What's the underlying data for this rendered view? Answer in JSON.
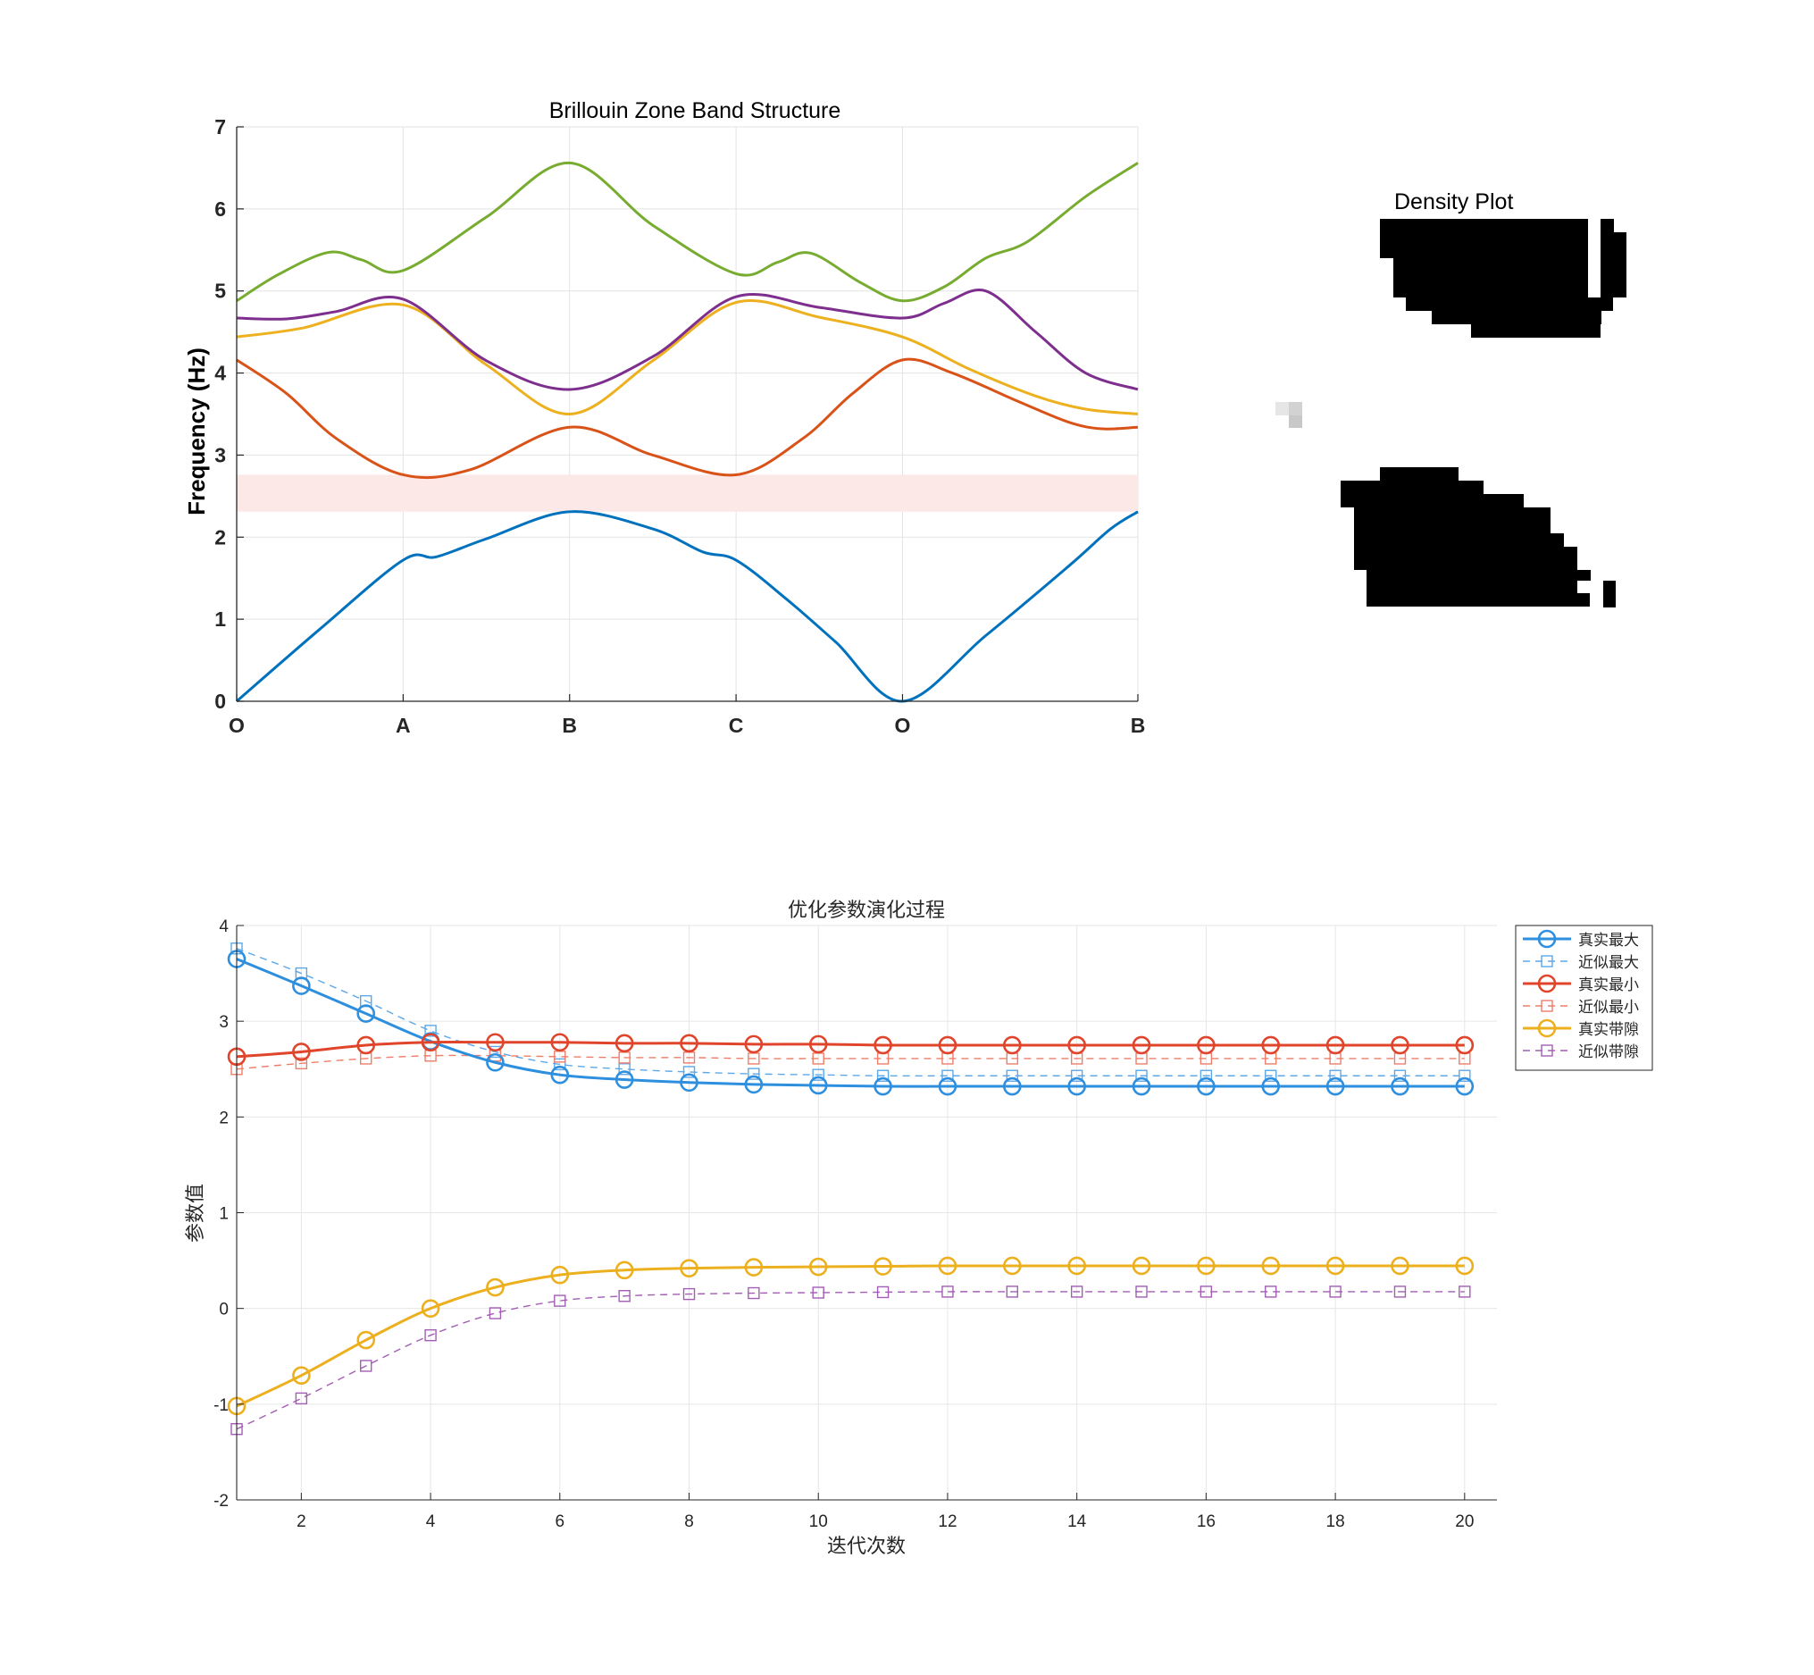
{
  "chart_data": [
    {
      "id": "band",
      "type": "line",
      "title": "Brillouin Zone Band Structure",
      "xlabel": "",
      "ylabel": "Frequency (Hz)",
      "ylim": [
        0,
        7
      ],
      "yticks": [
        "0",
        "1",
        "2",
        "3",
        "4",
        "5",
        "6",
        "7"
      ],
      "xticks": [
        {
          "pos": 0,
          "label": "O"
        },
        {
          "pos": 1,
          "label": "A"
        },
        {
          "pos": 2,
          "label": "B"
        },
        {
          "pos": 3,
          "label": "C"
        },
        {
          "pos": 4,
          "label": "O"
        },
        {
          "pos": 5.414,
          "label": "B"
        }
      ],
      "xlim": [
        0,
        5.414
      ],
      "grid": true,
      "band_gap": {
        "ymin": 2.31,
        "ymax": 2.76,
        "color": "#fde8e8"
      },
      "series": [
        {
          "color": "#0072bd",
          "x": [
            0,
            0.5,
            1,
            1.2,
            1.5,
            2,
            2.5,
            2.8,
            3,
            3.3,
            3.6,
            4,
            4.5,
            5,
            5.25,
            5.414
          ],
          "y": [
            0,
            0.88,
            1.72,
            1.76,
            1.98,
            2.31,
            2.1,
            1.82,
            1.72,
            1.25,
            0.72,
            0,
            0.8,
            1.65,
            2.1,
            2.31
          ]
        },
        {
          "color": "#d95319",
          "x": [
            0,
            0.3,
            0.6,
            1,
            1.4,
            2,
            2.5,
            3,
            3.4,
            3.7,
            4,
            4.3,
            4.7,
            5,
            5.2,
            5.414
          ],
          "y": [
            4.16,
            3.75,
            3.2,
            2.76,
            2.82,
            3.34,
            3.0,
            2.76,
            3.2,
            3.75,
            4.16,
            4.0,
            3.65,
            3.4,
            3.32,
            3.34
          ]
        },
        {
          "color": "#edb120",
          "x": [
            0,
            0.4,
            1,
            1.5,
            2,
            2.5,
            3,
            3.5,
            4,
            4.4,
            4.8,
            5.1,
            5.414
          ],
          "y": [
            4.44,
            4.55,
            4.83,
            4.1,
            3.5,
            4.15,
            4.86,
            4.68,
            4.44,
            4.05,
            3.72,
            3.56,
            3.5
          ]
        },
        {
          "color": "#7e2f8e",
          "x": [
            0,
            0.3,
            0.6,
            1,
            1.5,
            2,
            2.5,
            3,
            3.5,
            4,
            4.25,
            4.5,
            4.8,
            5.1,
            5.414
          ],
          "y": [
            4.67,
            4.66,
            4.75,
            4.9,
            4.15,
            3.8,
            4.2,
            4.93,
            4.8,
            4.67,
            4.85,
            5.0,
            4.5,
            4.0,
            3.8
          ]
        },
        {
          "color": "#77ac30",
          "x": [
            0,
            0.25,
            0.55,
            0.75,
            1,
            1.5,
            2,
            2.5,
            3,
            3.25,
            3.45,
            3.75,
            4,
            4.25,
            4.5,
            4.75,
            5.1,
            5.414
          ],
          "y": [
            4.88,
            5.2,
            5.47,
            5.38,
            5.25,
            5.9,
            6.56,
            5.8,
            5.21,
            5.35,
            5.46,
            5.1,
            4.88,
            5.05,
            5.4,
            5.6,
            6.15,
            6.56
          ]
        }
      ]
    },
    {
      "id": "density",
      "type": "heatmap",
      "title": "Density Plot",
      "grid": false
    },
    {
      "id": "opt",
      "type": "line",
      "title": "优化参数演化过程",
      "xlabel": "迭代次数",
      "ylabel": "参数值",
      "xlim": [
        1,
        20.5
      ],
      "ylim": [
        -2,
        4
      ],
      "xticks": [
        "2",
        "4",
        "6",
        "8",
        "10",
        "12",
        "14",
        "16",
        "18",
        "20"
      ],
      "yticks": [
        "-2",
        "-1",
        "0",
        "1",
        "2",
        "3",
        "4"
      ],
      "grid": true,
      "legend_position": "top-right",
      "x": [
        1,
        2,
        3,
        4,
        5,
        6,
        7,
        8,
        9,
        10,
        11,
        12,
        13,
        14,
        15,
        16,
        17,
        18,
        19,
        20
      ],
      "series": [
        {
          "name": "真实最大",
          "color": "#2e8fdf",
          "style": "solid",
          "marker": "circle",
          "values": [
            3.65,
            3.37,
            3.08,
            2.79,
            2.57,
            2.44,
            2.39,
            2.36,
            2.34,
            2.33,
            2.32,
            2.32,
            2.32,
            2.32,
            2.32,
            2.32,
            2.32,
            2.32,
            2.32,
            2.32
          ]
        },
        {
          "name": "近似最大",
          "color": "#5da8e8",
          "style": "dashed",
          "marker": "square",
          "values": [
            3.76,
            3.5,
            3.21,
            2.9,
            2.68,
            2.55,
            2.5,
            2.47,
            2.45,
            2.44,
            2.43,
            2.43,
            2.43,
            2.43,
            2.43,
            2.43,
            2.43,
            2.43,
            2.43,
            2.43
          ]
        },
        {
          "name": "真实最小",
          "color": "#e0452b",
          "style": "solid",
          "marker": "circle",
          "values": [
            2.63,
            2.68,
            2.75,
            2.78,
            2.78,
            2.78,
            2.77,
            2.77,
            2.76,
            2.76,
            2.75,
            2.75,
            2.75,
            2.75,
            2.75,
            2.75,
            2.75,
            2.75,
            2.75,
            2.75
          ]
        },
        {
          "name": "近似最小",
          "color": "#ee7e6a",
          "style": "dashed",
          "marker": "square",
          "values": [
            2.5,
            2.56,
            2.61,
            2.64,
            2.64,
            2.63,
            2.62,
            2.62,
            2.61,
            2.61,
            2.61,
            2.61,
            2.61,
            2.61,
            2.61,
            2.61,
            2.61,
            2.61,
            2.61,
            2.61
          ]
        },
        {
          "name": "真实带隙",
          "color": "#ecb01f",
          "style": "solid",
          "marker": "circle",
          "values": [
            -1.02,
            -0.7,
            -0.33,
            0.0,
            0.22,
            0.35,
            0.4,
            0.42,
            0.43,
            0.435,
            0.44,
            0.445,
            0.445,
            0.445,
            0.445,
            0.445,
            0.445,
            0.445,
            0.445,
            0.445
          ]
        },
        {
          "name": "近似带隙",
          "color": "#a35db5",
          "style": "dashed",
          "marker": "square",
          "values": [
            -1.26,
            -0.94,
            -0.6,
            -0.28,
            -0.05,
            0.08,
            0.13,
            0.15,
            0.16,
            0.165,
            0.17,
            0.175,
            0.175,
            0.175,
            0.175,
            0.175,
            0.175,
            0.175,
            0.175,
            0.175
          ]
        }
      ]
    }
  ]
}
